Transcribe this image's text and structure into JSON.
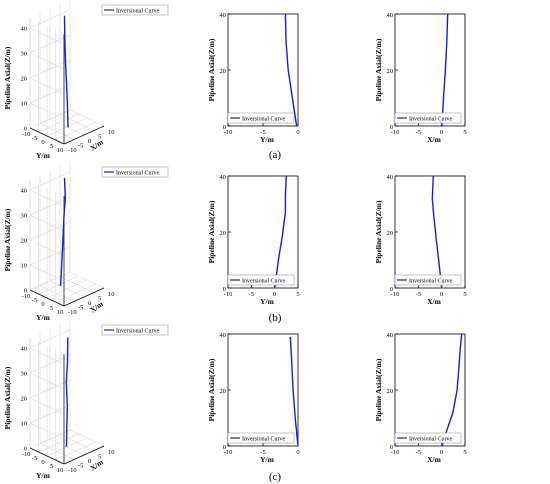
{
  "colors": {
    "curve": "#1a1adb",
    "axis": "#000000",
    "grid": "#cfcfcf"
  },
  "labels": [
    "(a)",
    "(b)",
    "(c)"
  ],
  "chart_data": [
    {
      "id": "a-3d",
      "type": "line",
      "projection": "3d",
      "zlabel": "Pipeline Axial(Z/m)",
      "ylabel3d": "Y/m",
      "xlabel3d": "X/m",
      "z_ticks": [
        "0",
        "10",
        "20",
        "30",
        "40"
      ],
      "y_ticks": [
        "-10",
        "-5",
        "0",
        "5",
        "10"
      ],
      "x_ticks": [
        "-10",
        "-5",
        "0",
        "5",
        "10"
      ],
      "legend": "Inversional Curve",
      "legend_position": "top-right",
      "series": [
        {
          "name": "Inversional Curve",
          "points": [
            [
              0,
              -1.5,
              44
            ],
            [
              0,
              -1.3,
              35
            ],
            [
              0,
              -0.8,
              25
            ],
            [
              0,
              -0.2,
              16
            ],
            [
              0,
              0.3,
              8
            ],
            [
              0,
              0.6,
              0
            ]
          ]
        }
      ]
    },
    {
      "id": "a-yz",
      "type": "line",
      "xlabel": "Y/m",
      "ylabel": "Pipeline Axial(Z/m)",
      "x_ticks": [
        "-10",
        "-5",
        "0"
      ],
      "y_ticks": [
        "0",
        "20",
        "40"
      ],
      "xlim": [
        -10,
        0
      ],
      "ylim": [
        0,
        40
      ],
      "legend": "Inversional Curve",
      "legend_position": "bottom-right",
      "series": [
        {
          "name": "Inversional Curve",
          "points": [
            [
              -1.8,
              40
            ],
            [
              -1.7,
              30
            ],
            [
              -1.4,
              20
            ],
            [
              -0.8,
              10
            ],
            [
              -0.2,
              0
            ]
          ]
        }
      ]
    },
    {
      "id": "a-xz",
      "type": "line",
      "xlabel": "X/m",
      "ylabel": "Pipeline Axial(Z/m)",
      "x_ticks": [
        "-10",
        "-5",
        "0",
        "5"
      ],
      "y_ticks": [
        "0",
        "20",
        "40"
      ],
      "xlim": [
        -10,
        5
      ],
      "ylim": [
        0,
        40
      ],
      "legend": "Inversional Curve",
      "legend_position": "bottom-right",
      "series": [
        {
          "name": "Inversional Curve",
          "points": [
            [
              1.3,
              40
            ],
            [
              1.1,
              30
            ],
            [
              0.8,
              20
            ],
            [
              0.4,
              10
            ],
            [
              0.05,
              0
            ]
          ]
        }
      ]
    },
    {
      "id": "b-3d",
      "type": "line",
      "projection": "3d",
      "zlabel": "Pipeline Axial(Z/m)",
      "ylabel3d": "Y/m",
      "xlabel3d": "X/m",
      "z_ticks": [
        "0",
        "10",
        "20",
        "30",
        "40"
      ],
      "y_ticks": [
        "-10",
        "-5",
        "0",
        "5",
        "10"
      ],
      "x_ticks": [
        "-10",
        "-5",
        "0",
        "5",
        "10"
      ],
      "legend": "Inversional Curve",
      "legend_position": "top-right",
      "series": [
        {
          "name": "Inversional Curve",
          "points": [
            [
              0,
              -1.5,
              44
            ],
            [
              0,
              -1.0,
              36
            ],
            [
              0,
              -1.8,
              28
            ],
            [
              0,
              -2.5,
              18
            ],
            [
              0,
              -3.2,
              8
            ],
            [
              0,
              -3.8,
              0
            ]
          ]
        }
      ]
    },
    {
      "id": "b-yz",
      "type": "line",
      "xlabel": "Y/m",
      "ylabel": "Pipeline Axial(Z/m)",
      "x_ticks": [
        "-10",
        "-5",
        "0",
        "5"
      ],
      "y_ticks": [
        "0",
        "20",
        "40"
      ],
      "xlim": [
        -10,
        5
      ],
      "ylim": [
        0,
        40
      ],
      "legend": "Inversional Curve",
      "legend_position": "bottom-right",
      "series": [
        {
          "name": "Inversional Curve",
          "points": [
            [
              2.5,
              40
            ],
            [
              2.3,
              33
            ],
            [
              2.3,
              27
            ],
            [
              1.6,
              18
            ],
            [
              0.8,
              10
            ],
            [
              0.0,
              0
            ]
          ]
        }
      ]
    },
    {
      "id": "b-xz",
      "type": "line",
      "xlabel": "X/m",
      "ylabel": "Pipeline Axial(Z/m)",
      "x_ticks": [
        "-10",
        "-5",
        "0",
        "5"
      ],
      "y_ticks": [
        "0",
        "20",
        "40"
      ],
      "xlim": [
        -10,
        5
      ],
      "ylim": [
        0,
        40
      ],
      "legend": "Inversional Curve",
      "legend_position": "bottom-right",
      "series": [
        {
          "name": "Inversional Curve",
          "points": [
            [
              -1.8,
              40
            ],
            [
              -2.0,
              32
            ],
            [
              -1.7,
              26
            ],
            [
              -1.2,
              18
            ],
            [
              -0.5,
              8
            ],
            [
              0.0,
              0
            ]
          ]
        }
      ]
    },
    {
      "id": "c-3d",
      "type": "line",
      "projection": "3d",
      "zlabel": "Pipeline Axial(Z/m)",
      "ylabel3d": "Y/m",
      "xlabel3d": "X/m",
      "z_ticks": [
        "0",
        "10",
        "20",
        "30",
        "40"
      ],
      "y_ticks": [
        "-10",
        "-5",
        "0",
        "5",
        "10"
      ],
      "x_ticks": [
        "-10",
        "-5",
        "0",
        "5",
        "10"
      ],
      "legend": "Inversional Curve",
      "legend_position": "top-right",
      "series": [
        {
          "name": "Inversional Curve",
          "points": [
            [
              0,
              0.5,
              44
            ],
            [
              0,
              0.3,
              34
            ],
            [
              0,
              -0.4,
              26
            ],
            [
              0,
              0.2,
              16
            ],
            [
              0,
              -0.1,
              8
            ],
            [
              0,
              -0.3,
              0
            ]
          ]
        }
      ]
    },
    {
      "id": "c-yz",
      "type": "line",
      "xlabel": "Y/m",
      "ylabel": "Pipeline Axial(Z/m)",
      "x_ticks": [
        "-10",
        "-5",
        "0"
      ],
      "y_ticks": [
        "0",
        "20",
        "40"
      ],
      "xlim": [
        -10,
        0
      ],
      "ylim": [
        0,
        40
      ],
      "legend": "Inversional Curve",
      "legend_position": "bottom-right",
      "series": [
        {
          "name": "Inversional Curve",
          "points": [
            [
              -1.1,
              39
            ],
            [
              -0.9,
              30
            ],
            [
              -0.7,
              20
            ],
            [
              -0.4,
              10
            ],
            [
              0.0,
              0
            ]
          ]
        }
      ]
    },
    {
      "id": "c-xz",
      "type": "line",
      "xlabel": "X/m",
      "ylabel": "Pipeline Axial(Z/m)",
      "x_ticks": [
        "-10",
        "-5",
        "0",
        "5"
      ],
      "y_ticks": [
        "0",
        "20",
        "40"
      ],
      "xlim": [
        -10,
        5
      ],
      "ylim": [
        0,
        40
      ],
      "legend": "Inversional Curve",
      "legend_position": "bottom-right",
      "series": [
        {
          "name": "Inversional Curve",
          "points": [
            [
              4.3,
              40
            ],
            [
              4.0,
              35
            ],
            [
              3.7,
              28
            ],
            [
              3.3,
              20
            ],
            [
              2.4,
              12
            ],
            [
              1.0,
              5
            ],
            [
              0.1,
              0
            ]
          ]
        }
      ]
    }
  ]
}
